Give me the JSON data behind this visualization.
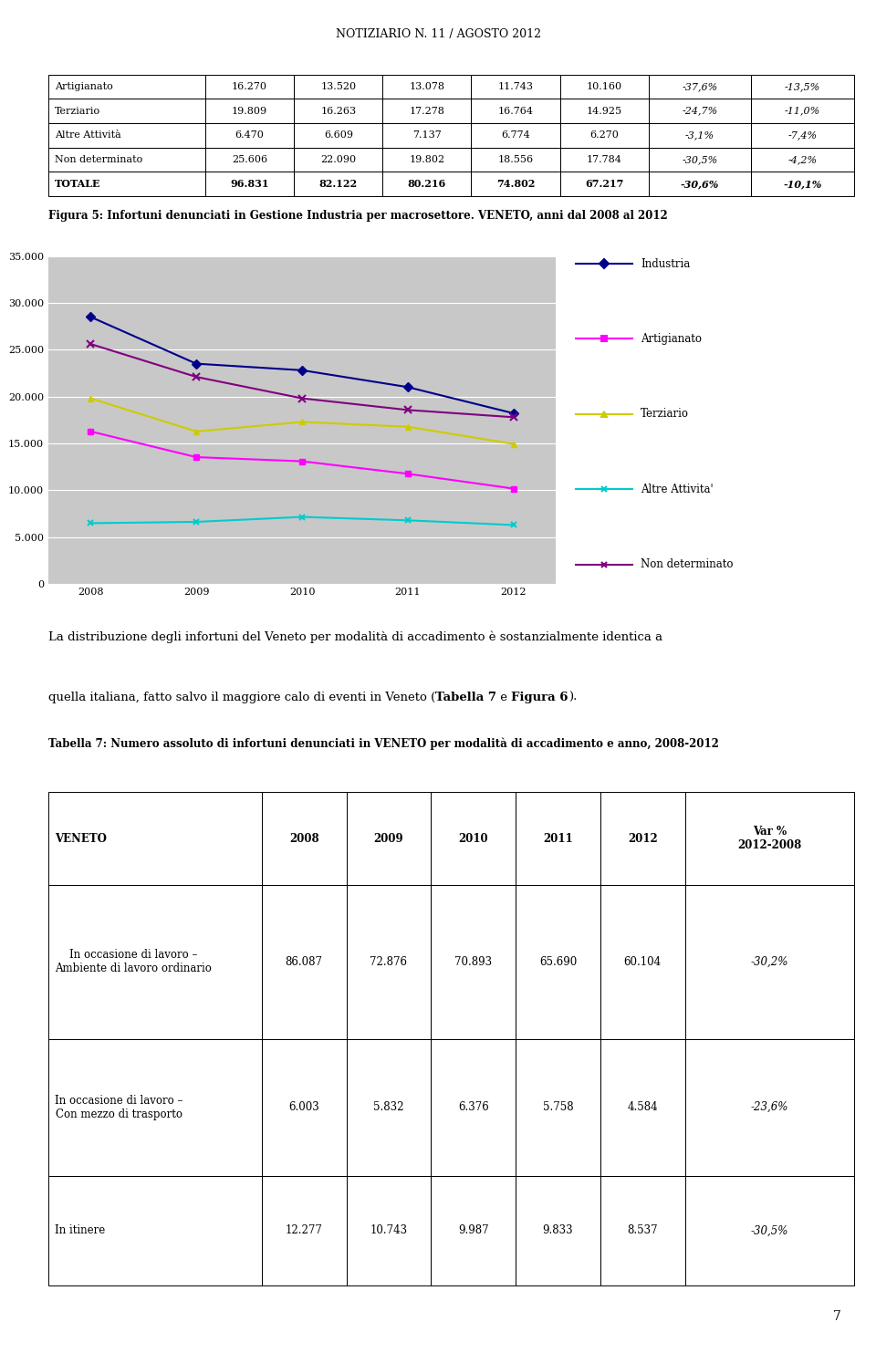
{
  "page_title": "Notiziario n. 11 / Agosto 2012",
  "top_table_rows": [
    [
      "Artigianato",
      "16.270",
      "13.520",
      "13.078",
      "11.743",
      "10.160",
      "-37,6%",
      "-13,5%"
    ],
    [
      "Terziario",
      "19.809",
      "16.263",
      "17.278",
      "16.764",
      "14.925",
      "-24,7%",
      "-11,0%"
    ],
    [
      "Altre Attività",
      "6.470",
      "6.609",
      "7.137",
      "6.774",
      "6.270",
      "-3,1%",
      "-7,4%"
    ],
    [
      "Non determinato",
      "25.606",
      "22.090",
      "19.802",
      "18.556",
      "17.784",
      "-30,5%",
      "-4,2%"
    ],
    [
      "TOTALE",
      "96.831",
      "82.122",
      "80.216",
      "74.802",
      "67.217",
      "-30,6%",
      "-10,1%"
    ]
  ],
  "chart_title": "Figura 5: Infortuni denunciati in Gestione Industria per macrosettore. VENETO, anni dal 2008 al 2012",
  "years": [
    2008,
    2009,
    2010,
    2011,
    2012
  ],
  "industria": [
    28500,
    23500,
    22800,
    21000,
    18200
  ],
  "artigianato": [
    16270,
    13520,
    13078,
    11743,
    10160
  ],
  "terziario": [
    19809,
    16263,
    17278,
    16764,
    14925
  ],
  "altre_attivita": [
    6470,
    6609,
    7137,
    6774,
    6270
  ],
  "non_determinato": [
    25606,
    22090,
    19802,
    18556,
    17784
  ],
  "ylim": [
    0,
    35000
  ],
  "yticks": [
    0,
    5000,
    10000,
    15000,
    20000,
    25000,
    30000,
    35000
  ],
  "ytick_labels": [
    "0",
    "5.000",
    "10.000",
    "15.000",
    "20.000",
    "25.000",
    "30.000",
    "35.000"
  ],
  "colors": {
    "industria": "#00008B",
    "artigianato": "#FF00FF",
    "terziario": "#CCCC00",
    "altre_attivita": "#00CCCC",
    "non_determinato": "#800080"
  },
  "chart_bg": "#C8C8C8",
  "legend_items": [
    {
      "label": "Industria",
      "color": "#00008B",
      "marker": "D"
    },
    {
      "label": "Artigianato",
      "color": "#FF00FF",
      "marker": "s"
    },
    {
      "label": "Terziario",
      "color": "#CCCC00",
      "marker": "^"
    },
    {
      "label": "Altre Attivita'",
      "color": "#00CCCC",
      "marker": "x"
    },
    {
      "label": "Non determinato",
      "color": "#800080",
      "marker": "x"
    }
  ],
  "para_line1": "La distribuzione degli infortuni del Veneto per modalità di accadimento è sostanzialmente identica a",
  "para_line2_normal1": "quella italiana, fatto salvo il maggiore calo di eventi in Veneto (",
  "para_line2_bold1": "Tabella 7",
  "para_line2_normal2": " e ",
  "para_line2_bold2": "Figura 6",
  "para_line2_normal3": ").",
  "tabella7_title": "Tabella 7: Numero assoluto di infortuni denunciati in VENETO per modalità di accadimento e anno, 2008-2012",
  "table7_header": [
    "VENETO",
    "2008",
    "2009",
    "2010",
    "2011",
    "2012",
    "Var %\n2012-2008"
  ],
  "table7_rows": [
    [
      "In occasione di lavoro –\nAmbiente di lavoro ordinario",
      "86.087",
      "72.876",
      "70.893",
      "65.690",
      "60.104",
      "-30,2%"
    ],
    [
      "In occasione di lavoro –\nCon mezzo di trasporto",
      "6.003",
      "5.832",
      "6.376",
      "5.758",
      "4.584",
      "-23,6%"
    ],
    [
      "In itinere",
      "12.277",
      "10.743",
      "9.987",
      "9.833",
      "8.537",
      "-30,5%"
    ]
  ],
  "page_number": "7"
}
